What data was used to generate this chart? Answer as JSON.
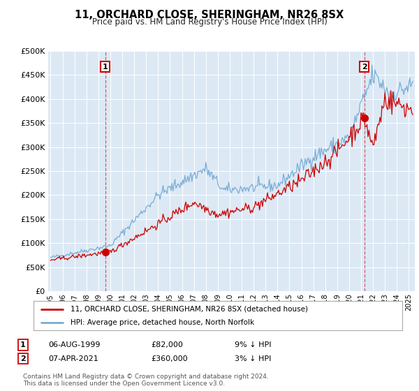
{
  "title": "11, ORCHARD CLOSE, SHERINGHAM, NR26 8SX",
  "subtitle": "Price paid vs. HM Land Registry's House Price Index (HPI)",
  "property_label": "11, ORCHARD CLOSE, SHERINGHAM, NR26 8SX (detached house)",
  "hpi_label": "HPI: Average price, detached house, North Norfolk",
  "sale1_date": "06-AUG-1999",
  "sale1_price": 82000,
  "sale1_note": "9% ↓ HPI",
  "sale2_date": "07-APR-2021",
  "sale2_price": 360000,
  "sale2_note": "3% ↓ HPI",
  "footer": "Contains HM Land Registry data © Crown copyright and database right 2024.\nThis data is licensed under the Open Government Licence v3.0.",
  "bg_color": "#dce9f5",
  "line_color_property": "#cc0000",
  "line_color_hpi": "#7aadd4",
  "sale1_x": 1999.58,
  "sale2_x": 2021.27,
  "ylim_min": 0,
  "ylim_max": 500000,
  "xlim_min": 1994.8,
  "xlim_max": 2025.5
}
